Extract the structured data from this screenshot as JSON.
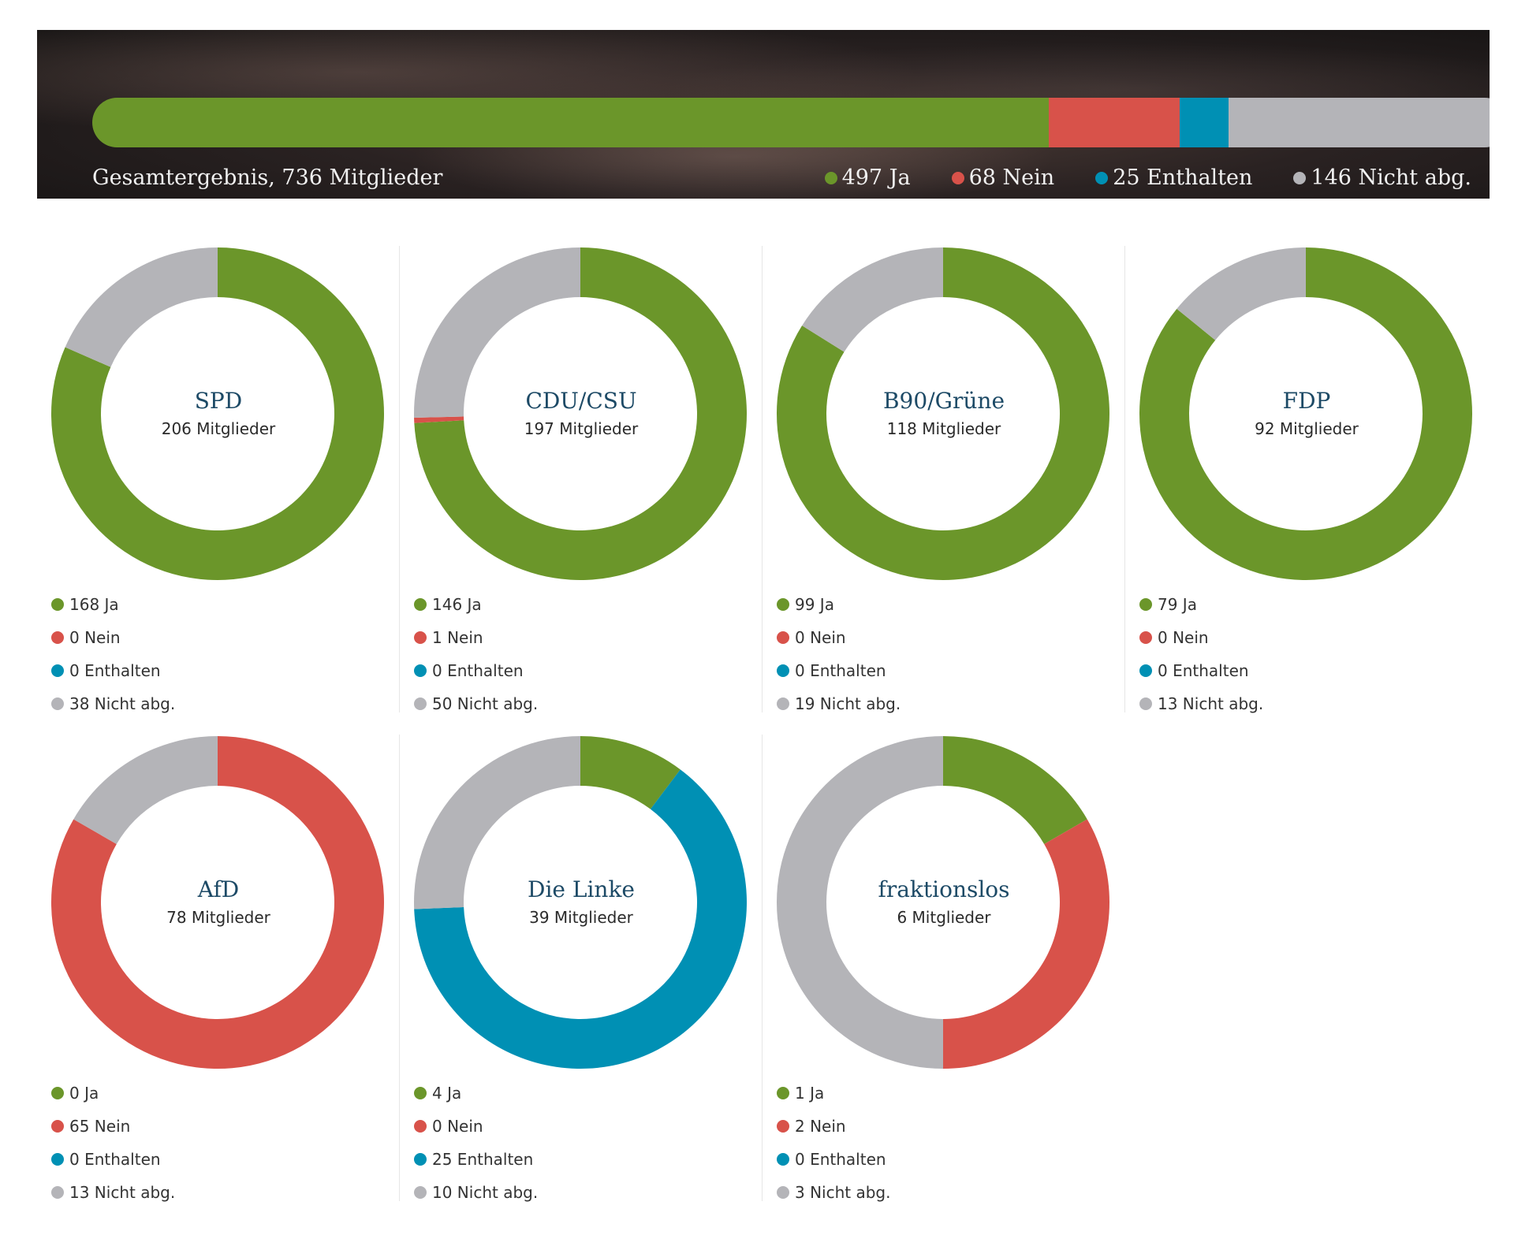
{
  "colors": {
    "ja": "#6b962a",
    "nein": "#d8524a",
    "enthalten": "#0090b4",
    "nicht": "#b4b4b8"
  },
  "overall": {
    "caption": "Gesamtergebnis, 736 Mitglieder",
    "legend": [
      "497 Ja",
      "68 Nein",
      "25 Enthalten",
      "146 Nicht abg."
    ]
  },
  "chart_data": [
    {
      "type": "bar",
      "title": "Gesamtergebnis, 736 Mitglieder",
      "categories": [
        "Ja",
        "Nein",
        "Enthalten",
        "Nicht abg."
      ],
      "values": [
        497,
        68,
        25,
        146
      ]
    },
    {
      "type": "pie",
      "title": "SPD",
      "subtitle": "206 Mitglieder",
      "categories": [
        "Ja",
        "Nein",
        "Enthalten",
        "Nicht abg."
      ],
      "values": [
        168,
        0,
        0,
        38
      ],
      "labels": [
        "168 Ja",
        "0 Nein",
        "0 Enthalten",
        "38 Nicht abg."
      ]
    },
    {
      "type": "pie",
      "title": "CDU/CSU",
      "subtitle": "197 Mitglieder",
      "categories": [
        "Ja",
        "Nein",
        "Enthalten",
        "Nicht abg."
      ],
      "values": [
        146,
        1,
        0,
        50
      ],
      "labels": [
        "146 Ja",
        "1 Nein",
        "0 Enthalten",
        "50 Nicht abg."
      ]
    },
    {
      "type": "pie",
      "title": "B90/Grüne",
      "subtitle": "118 Mitglieder",
      "categories": [
        "Ja",
        "Nein",
        "Enthalten",
        "Nicht abg."
      ],
      "values": [
        99,
        0,
        0,
        19
      ],
      "labels": [
        "99 Ja",
        "0 Nein",
        "0 Enthalten",
        "19 Nicht abg."
      ]
    },
    {
      "type": "pie",
      "title": "FDP",
      "subtitle": "92 Mitglieder",
      "categories": [
        "Ja",
        "Nein",
        "Enthalten",
        "Nicht abg."
      ],
      "values": [
        79,
        0,
        0,
        13
      ],
      "labels": [
        "79 Ja",
        "0 Nein",
        "0 Enthalten",
        "13 Nicht abg."
      ]
    },
    {
      "type": "pie",
      "title": "AfD",
      "subtitle": "78 Mitglieder",
      "categories": [
        "Ja",
        "Nein",
        "Enthalten",
        "Nicht abg."
      ],
      "values": [
        0,
        65,
        0,
        13
      ],
      "labels": [
        "0 Ja",
        "65 Nein",
        "0 Enthalten",
        "13 Nicht abg."
      ]
    },
    {
      "type": "pie",
      "title": "Die Linke",
      "subtitle": "39 Mitglieder",
      "categories": [
        "Ja",
        "Nein",
        "Enthalten",
        "Nicht abg."
      ],
      "values": [
        4,
        0,
        25,
        10
      ],
      "labels": [
        "4 Ja",
        "0 Nein",
        "25 Enthalten",
        "10 Nicht abg."
      ]
    },
    {
      "type": "pie",
      "title": "fraktionslos",
      "subtitle": "6 Mitglieder",
      "categories": [
        "Ja",
        "Nein",
        "Enthalten",
        "Nicht abg."
      ],
      "values": [
        1,
        2,
        0,
        3
      ],
      "labels": [
        "1 Ja",
        "2 Nein",
        "0 Enthalten",
        "3 Nicht abg."
      ]
    }
  ]
}
